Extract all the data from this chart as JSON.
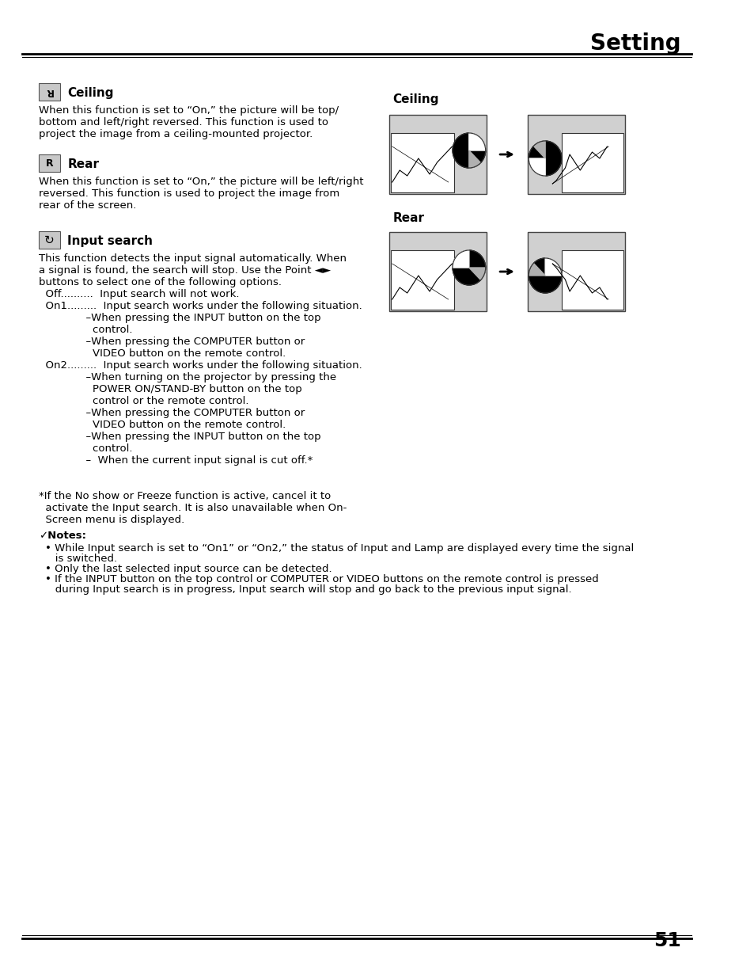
{
  "title": "Setting",
  "page_number": "51",
  "bg_color": "#ffffff",
  "header_line_color": "#000000",
  "title_font_size": 20,
  "body_font_size": 9.5,
  "sections": [
    {
      "icon_label": "Ceiling",
      "heading": "Ceiling",
      "body": "When this function is set to “On,” the picture will be top/\nbottom and left/right reversed. This function is used to\nproject the image from a ceiling-mounted projector."
    },
    {
      "icon_label": "Rear",
      "heading": "Rear",
      "body": "When this function is set to “On,” the picture will be left/right\nreversed. This function is used to project the image from\nrear of the screen."
    },
    {
      "icon_label": "Input search",
      "heading": "Input search",
      "body_lines": [
        "This function detects the input signal automatically. When",
        "a signal is found, the search will stop. Use the Point ◄►",
        "buttons to select one of the following options.",
        "  Off..........  Input search will not work.",
        "  On1.........  Input search works under the following situation.",
        "              –When pressing the INPUT button on the top",
        "                control.",
        "              –When pressing the COMPUTER button or",
        "                VIDEO button on the remote control.",
        "  On2.........  Input search works under the following situation.",
        "              –When turning on the projector by pressing the",
        "                POWER ON/STAND-BY button on the top",
        "                control or the remote control.",
        "              –When pressing the COMPUTER button or",
        "                VIDEO button on the remote control.",
        "              –When pressing the INPUT button on the top",
        "                control.",
        "              –  When the current input signal is cut off.*"
      ]
    }
  ],
  "footnote": "*If the No show or Freeze function is active, cancel it to\n  activate the Input search. It is also unavailable when On-\n  Screen menu is displayed.",
  "notes_heading": "✓Notes:",
  "notes": [
    "• While Input search is set to “On1” or “On2,” the status of Input and Lamp are displayed every time the signal",
    "   is switched.",
    "• Only the last selected input source can be detected.",
    "• If the INPUT button on the top control or COMPUTER or VIDEO buttons on the remote control is pressed",
    "   during Input search is in progress, Input search will stop and go back to the previous input signal."
  ],
  "diagram_ceiling_label": "Ceiling",
  "diagram_rear_label": "Rear",
  "gray_color": "#b0b0b0",
  "dark_gray": "#808080",
  "light_gray": "#d0d0d0"
}
